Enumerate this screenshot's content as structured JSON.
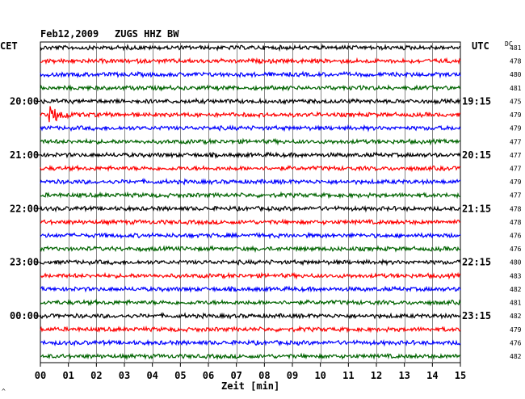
{
  "header": {
    "date": "Feb12,2009",
    "station": "ZUGS HHZ BW"
  },
  "labels": {
    "left_tz": "CET",
    "right_tz": "UTC",
    "dc": "DC",
    "xlabel": "Zeit [min]",
    "corner_mark": "^"
  },
  "chart_data": {
    "type": "line",
    "title": "Feb12,2009   ZUGS HHZ BW",
    "xlabel": "Zeit [min]",
    "xlim": [
      0,
      15
    ],
    "x_ticks": [
      "00",
      "01",
      "02",
      "03",
      "04",
      "05",
      "06",
      "07",
      "08",
      "09",
      "10",
      "11",
      "12",
      "13",
      "14",
      "15"
    ],
    "trace_colors": [
      "#000000",
      "#ff0000",
      "#0000ff",
      "#006400"
    ],
    "left_hour_labels": [
      "20:00",
      "21:00",
      "22:00",
      "23:00",
      "00:00"
    ],
    "right_hour_labels": [
      "19:15",
      "20:15",
      "21:15",
      "22:15",
      "23:15"
    ],
    "dc_offsets": [
      481,
      478,
      480,
      481,
      475,
      479,
      479,
      477,
      477,
      477,
      479,
      477,
      478,
      478,
      476,
      476,
      480,
      483,
      482,
      481,
      482,
      479,
      476,
      482
    ],
    "traces_count": 24,
    "event": {
      "trace_index": 5,
      "x_min": 0.4,
      "note_amplitude": "large"
    }
  }
}
